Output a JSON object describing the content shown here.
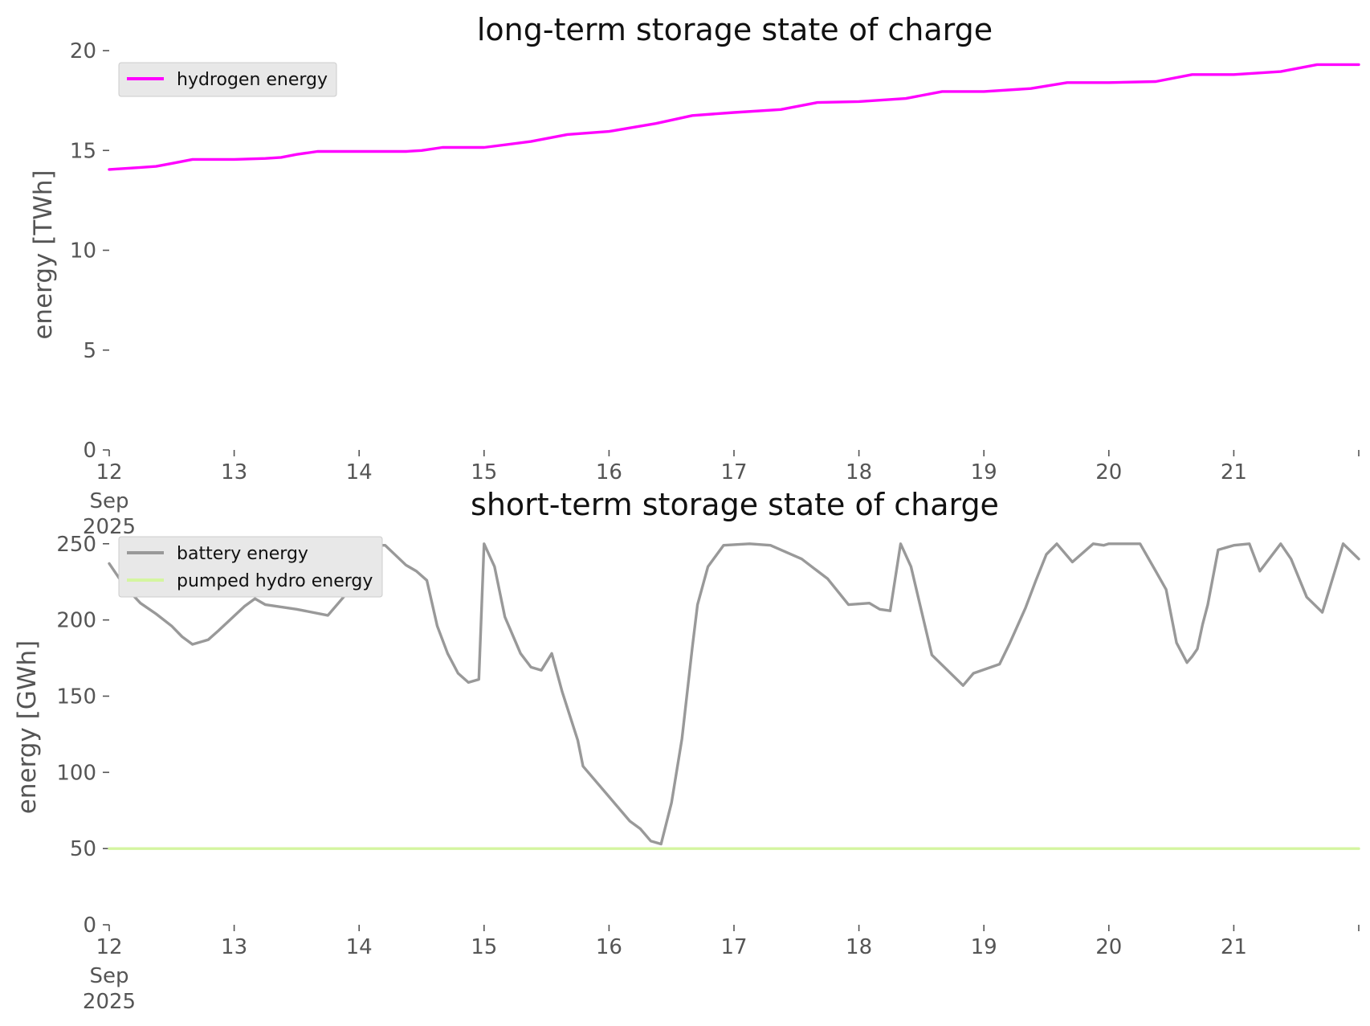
{
  "chart_data": [
    {
      "type": "line",
      "title": "long-term storage state of charge",
      "ylabel": "energy [TWh]",
      "xlabel": "",
      "xlim": [
        "2025-09-12T00:00",
        "2025-09-22T00:00"
      ],
      "ylim": [
        0,
        20
      ],
      "yticks": [
        "0",
        "5",
        "10",
        "15",
        "20"
      ],
      "xticks": [
        {
          "label": "12",
          "sub": [
            "Sep",
            "2025"
          ]
        },
        {
          "label": "13"
        },
        {
          "label": "14"
        },
        {
          "label": "15"
        },
        {
          "label": "16"
        },
        {
          "label": "17"
        },
        {
          "label": "18"
        },
        {
          "label": "19"
        },
        {
          "label": "20"
        },
        {
          "label": "21"
        },
        {
          "label": ""
        }
      ],
      "grid": false,
      "legend": "top-left",
      "series": [
        {
          "name": "hydrogen energy",
          "color": "#ff00ff",
          "x": [
            "2025-09-12T00:00",
            "2025-09-12T06:00",
            "2025-09-12T09:00",
            "2025-09-12T12:00",
            "2025-09-12T16:00",
            "2025-09-13T00:00",
            "2025-09-13T06:00",
            "2025-09-13T09:00",
            "2025-09-13T12:00",
            "2025-09-13T16:00",
            "2025-09-14T00:00",
            "2025-09-14T09:00",
            "2025-09-14T12:00",
            "2025-09-14T16:00",
            "2025-09-15T00:00",
            "2025-09-15T09:00",
            "2025-09-15T16:00",
            "2025-09-16T00:00",
            "2025-09-16T09:00",
            "2025-09-16T16:00",
            "2025-09-17T00:00",
            "2025-09-17T09:00",
            "2025-09-17T16:00",
            "2025-09-18T00:00",
            "2025-09-18T09:00",
            "2025-09-18T16:00",
            "2025-09-19T00:00",
            "2025-09-19T09:00",
            "2025-09-19T16:00",
            "2025-09-20T00:00",
            "2025-09-20T09:00",
            "2025-09-20T16:00",
            "2025-09-21T00:00",
            "2025-09-21T09:00",
            "2025-09-21T16:00",
            "2025-09-22T00:00"
          ],
          "values": [
            14.05,
            14.15,
            14.2,
            14.35,
            14.55,
            14.55,
            14.6,
            14.65,
            14.8,
            14.95,
            14.95,
            14.95,
            15.0,
            15.15,
            15.15,
            15.45,
            15.8,
            15.95,
            16.35,
            16.75,
            16.9,
            17.05,
            17.4,
            17.45,
            17.6,
            17.95,
            17.95,
            18.1,
            18.4,
            18.4,
            18.45,
            18.8,
            18.8,
            18.95,
            19.3,
            19.3
          ]
        }
      ]
    },
    {
      "type": "line",
      "title": "short-term storage state of charge",
      "ylabel": "energy [GWh]",
      "xlabel": "",
      "xlim": [
        "2025-09-12T00:00",
        "2025-09-22T00:00"
      ],
      "ylim": [
        0,
        262
      ],
      "yticks": [
        "0",
        "50",
        "100",
        "150",
        "200",
        "250"
      ],
      "xticks": [
        {
          "label": "12",
          "sub": [
            "Sep",
            "2025"
          ]
        },
        {
          "label": "13"
        },
        {
          "label": "14"
        },
        {
          "label": "15"
        },
        {
          "label": "16"
        },
        {
          "label": "17"
        },
        {
          "label": "18"
        },
        {
          "label": "19"
        },
        {
          "label": "20"
        },
        {
          "label": "21"
        },
        {
          "label": ""
        }
      ],
      "grid": false,
      "legend": "top-left",
      "series": [
        {
          "name": "battery energy",
          "color": "#999999",
          "x": [
            "2025-09-12T00:00",
            "2025-09-12T03:00",
            "2025-09-12T06:00",
            "2025-09-12T09:00",
            "2025-09-12T12:00",
            "2025-09-12T14:00",
            "2025-09-12T16:00",
            "2025-09-12T19:00",
            "2025-09-12T21:00",
            "2025-09-13T02:00",
            "2025-09-13T04:00",
            "2025-09-13T06:00",
            "2025-09-13T12:00",
            "2025-09-13T18:00",
            "2025-09-13T21:00",
            "2025-09-14T00:00",
            "2025-09-14T05:00",
            "2025-09-14T09:00",
            "2025-09-14T11:00",
            "2025-09-14T13:00",
            "2025-09-14T15:00",
            "2025-09-14T17:00",
            "2025-09-14T19:00",
            "2025-09-14T21:00",
            "2025-09-14T23:00",
            "2025-09-15T00:00",
            "2025-09-15T02:00",
            "2025-09-15T04:00",
            "2025-09-15T07:00",
            "2025-09-15T09:00",
            "2025-09-15T11:00",
            "2025-09-15T13:00",
            "2025-09-15T15:00",
            "2025-09-15T18:00",
            "2025-09-15T19:00",
            "2025-09-16T04:00",
            "2025-09-16T06:00",
            "2025-09-16T08:00",
            "2025-09-16T10:00",
            "2025-09-16T12:00",
            "2025-09-16T14:00",
            "2025-09-16T16:00",
            "2025-09-16T17:00",
            "2025-09-16T19:00",
            "2025-09-16T22:00",
            "2025-09-17T03:00",
            "2025-09-17T07:00",
            "2025-09-17T13:00",
            "2025-09-17T18:00",
            "2025-09-17T22:00",
            "2025-09-18T02:00",
            "2025-09-18T04:00",
            "2025-09-18T06:00",
            "2025-09-18T08:00",
            "2025-09-18T10:00",
            "2025-09-18T14:00",
            "2025-09-18T20:00",
            "2025-09-18T22:00",
            "2025-09-19T03:00",
            "2025-09-19T05:00",
            "2025-09-19T08:00",
            "2025-09-19T10:00",
            "2025-09-19T12:00",
            "2025-09-19T14:00",
            "2025-09-19T17:00",
            "2025-09-19T21:00",
            "2025-09-19T23:00",
            "2025-09-20T00:00",
            "2025-09-20T06:00",
            "2025-09-20T09:00",
            "2025-09-20T11:00",
            "2025-09-20T13:00",
            "2025-09-20T15:00",
            "2025-09-20T16:00",
            "2025-09-20T17:00",
            "2025-09-20T18:00",
            "2025-09-20T19:00",
            "2025-09-20T21:00",
            "2025-09-21T00:00",
            "2025-09-21T03:00",
            "2025-09-21T05:00",
            "2025-09-21T09:00",
            "2025-09-21T11:00",
            "2025-09-21T14:00",
            "2025-09-21T17:00",
            "2025-09-21T21:00",
            "2025-09-22T00:00"
          ],
          "values": [
            237,
            222,
            211,
            204,
            196,
            189,
            184,
            187,
            193,
            209,
            214,
            210,
            207,
            203,
            215,
            249,
            249,
            236,
            232,
            226,
            196,
            178,
            165,
            159,
            161,
            250,
            235,
            202,
            178,
            169,
            167,
            178,
            153,
            121,
            104,
            68,
            63,
            55,
            53,
            80,
            122,
            182,
            210,
            235,
            249,
            250,
            249,
            240,
            227,
            210,
            211,
            207,
            206,
            250,
            235,
            177,
            157,
            165,
            171,
            185,
            208,
            226,
            243,
            250,
            238,
            250,
            249,
            250,
            250,
            232,
            220,
            185,
            172,
            176,
            181,
            197,
            210,
            246,
            249,
            250,
            232,
            250,
            240,
            215,
            205,
            250,
            240
          ]
        },
        {
          "name": "pumped hydro energy",
          "color": "#d4f5a0",
          "x": [
            "2025-09-12T00:00",
            "2025-09-22T00:00"
          ],
          "values": [
            50,
            50
          ]
        }
      ]
    }
  ]
}
